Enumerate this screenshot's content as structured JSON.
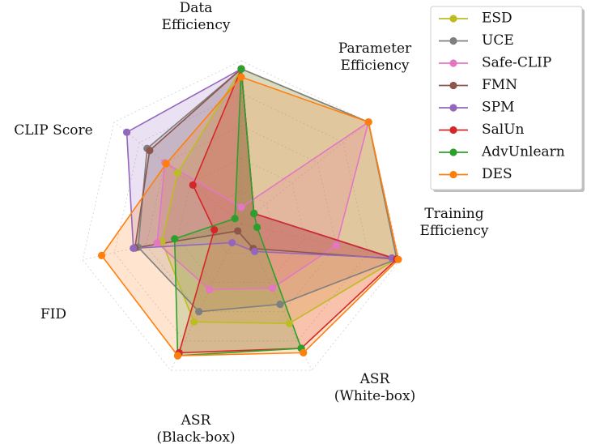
{
  "chart_data": {
    "type": "radar",
    "axes": [
      {
        "id": "data_eff",
        "lines": [
          "Data",
          "Efficiency"
        ]
      },
      {
        "id": "param_eff",
        "lines": [
          "Parameter",
          "Efficiency"
        ]
      },
      {
        "id": "train_eff",
        "lines": [
          "Training",
          "Efficiency"
        ]
      },
      {
        "id": "asr_white",
        "lines": [
          "ASR",
          "(White-box)"
        ]
      },
      {
        "id": "asr_black",
        "lines": [
          "ASR",
          "(Black-box)"
        ]
      },
      {
        "id": "fid",
        "lines": [
          "FID"
        ]
      },
      {
        "id": "clip",
        "lines": [
          "CLIP Score"
        ]
      }
    ],
    "range": [
      0,
      1
    ],
    "grid_levels": [
      0.2,
      0.4,
      0.6,
      0.8,
      1.0
    ],
    "legend_position": "top-right",
    "series": [
      {
        "name": "ESD",
        "color": "#bcbd22",
        "values": [
          0.95,
          1.0,
          0.98,
          0.68,
          0.67,
          0.5,
          0.5
        ]
      },
      {
        "name": "UCE",
        "color": "#7f7f7f",
        "values": [
          0.95,
          1.0,
          0.98,
          0.55,
          0.6,
          0.65,
          0.74
        ]
      },
      {
        "name": "Safe-CLIP",
        "color": "#e377c2",
        "values": [
          0.1,
          1.0,
          0.6,
          0.44,
          0.45,
          0.53,
          0.6
        ]
      },
      {
        "name": "FMN",
        "color": "#8c564b",
        "values": [
          0.95,
          0.1,
          0.98,
          0.17,
          0.05,
          0.67,
          0.72
        ]
      },
      {
        "name": "SPM",
        "color": "#9467bd",
        "values": [
          0.95,
          0.1,
          0.95,
          0.19,
          0.13,
          0.68,
          0.9
        ]
      },
      {
        "name": "SalUn",
        "color": "#d62728",
        "values": [
          0.95,
          0.1,
          0.98,
          0.85,
          0.88,
          0.17,
          0.38
        ]
      },
      {
        "name": "AdvUnlearn",
        "color": "#2ca02c",
        "values": [
          0.95,
          0.1,
          0.1,
          0.85,
          0.9,
          0.42,
          0.05
        ]
      },
      {
        "name": "DES",
        "color": "#ff7f0e",
        "values": [
          0.9,
          1.0,
          0.99,
          0.88,
          0.9,
          0.88,
          0.59
        ]
      }
    ]
  }
}
